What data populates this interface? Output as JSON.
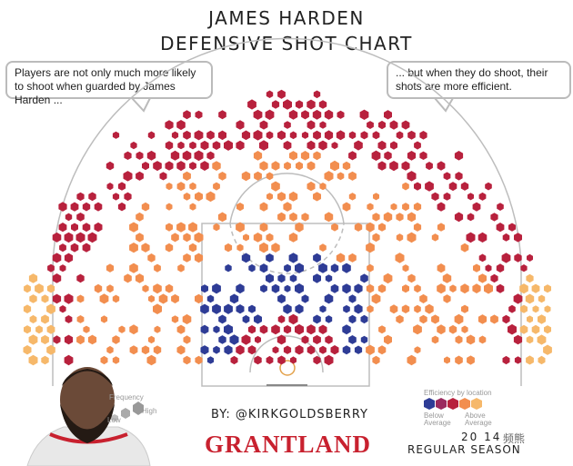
{
  "title_line1": "JAMES HARDEN",
  "title_line2": "DEFENSIVE SHOT CHART",
  "callout_left": "Players are not only much more likely to shoot when guarded by James Harden ...",
  "callout_right": "... but when they do shoot, their shots are more efficient.",
  "byline": "BY: @KIRKGOLDSBERRY",
  "brand": "GRANTLAND",
  "season_year": "20  14",
  "season_label": "REGULAR SEASON",
  "watermark": "频熊",
  "legend_frequency": {
    "title": "Frequency",
    "low": "Low",
    "high": "High"
  },
  "legend_efficiency": {
    "title": "Efficiency by location",
    "below": "Below Average",
    "above": "Above Average"
  },
  "colors": {
    "below_avg": "#2e3c96",
    "slightly_below": "#9b2a5e",
    "slightly_above": "#b8213d",
    "above_avg": "#f28e4f",
    "far_above": "#f6b86a",
    "court_line": "#bdbdbd"
  },
  "chart_data": {
    "type": "heatmap",
    "subtype": "hexbin shot chart",
    "title": "James Harden Defensive Shot Chart",
    "description_categories": [
      "below average",
      "slightly below",
      "slightly above",
      "above average",
      "far above"
    ],
    "zones": [
      {
        "zone": "restricted area",
        "efficiency": "slightly above"
      },
      {
        "zone": "paint non-RA",
        "efficiency": "below average"
      },
      {
        "zone": "mid-range",
        "efficiency": "above average"
      },
      {
        "zone": "above the break 3",
        "efficiency": "slightly above"
      },
      {
        "zone": "corner 3",
        "efficiency": "far above"
      }
    ]
  }
}
